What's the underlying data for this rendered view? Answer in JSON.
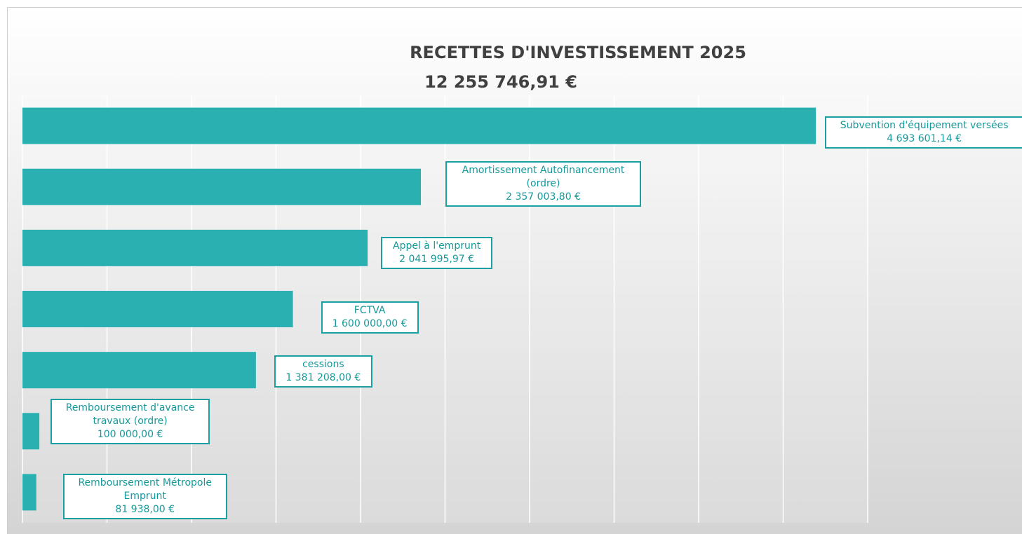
{
  "chart_data": {
    "type": "barh",
    "title": "RECETTES D'INVESTISSEMENT 2025",
    "subtitle": "12 255 746,91 €",
    "categories": [
      "Subvention d'équipement versées",
      "Amortissement Autofinancement (ordre)",
      "Appel à l'emprunt",
      "FCTVA",
      "cessions",
      "Remboursement d'avance travaux (ordre)",
      "Remboursement Métropole Emprunt"
    ],
    "values": [
      4693601.14,
      2357003.8,
      2041995.97,
      1600000,
      1381208,
      100000,
      81938
    ],
    "value_labels": [
      "4 693 601,14 €",
      "2 357 003,80 €",
      "2 041 995,97 €",
      "1 600 000,00 €",
      "1 381 208,00 €",
      "100 000,00 €",
      "81 938,00 €"
    ],
    "color": "#2bb0b1",
    "xlim": [
      0,
      5000000
    ],
    "xticks": [
      0,
      500000,
      1000000,
      1500000,
      2000000,
      2500000,
      3000000,
      3500000,
      4000000,
      4500000,
      5000000
    ],
    "grid": true
  }
}
